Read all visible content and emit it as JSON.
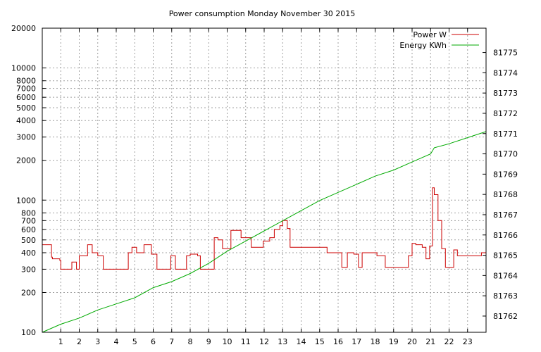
{
  "chart_data": {
    "type": "line",
    "title": "Power consumption Monday November 30 2015",
    "xlabel": "",
    "ylabel": "",
    "y2label": "",
    "xlim": [
      0,
      24
    ],
    "ylim": [
      100,
      20000
    ],
    "y_scale": "log",
    "y2lim": [
      81761.2,
      81776.2
    ],
    "x_ticks": [
      "1",
      "2",
      "3",
      "4",
      "5",
      "6",
      "7",
      "8",
      "9",
      "10",
      "11",
      "12",
      "13",
      "14",
      "15",
      "16",
      "17",
      "18",
      "19",
      "20",
      "21",
      "22",
      "23"
    ],
    "y_ticks_left": [
      {
        "value": 100,
        "label": "100"
      },
      {
        "value": 200,
        "label": "200"
      },
      {
        "value": 300,
        "label": "300"
      },
      {
        "value": 400,
        "label": "400"
      },
      {
        "value": 500,
        "label": "500"
      },
      {
        "value": 600,
        "label": "600"
      },
      {
        "value": 700,
        "label": "700"
      },
      {
        "value": 800,
        "label": "800"
      },
      {
        "value": 1000,
        "label": "1000"
      },
      {
        "value": 2000,
        "label": "2000"
      },
      {
        "value": 3000,
        "label": "3000"
      },
      {
        "value": 4000,
        "label": "4000"
      },
      {
        "value": 5000,
        "label": "5000"
      },
      {
        "value": 6000,
        "label": "6000"
      },
      {
        "value": 7000,
        "label": "7000"
      },
      {
        "value": 8000,
        "label": "8000"
      },
      {
        "value": 10000,
        "label": "10000"
      },
      {
        "value": 20000,
        "label": "20000"
      }
    ],
    "y_ticks_right": [
      "81762",
      "81763",
      "81764",
      "81765",
      "81766",
      "81767",
      "81768",
      "81769",
      "81770",
      "81771",
      "81772",
      "81773",
      "81774",
      "81775"
    ],
    "grid": true,
    "legend_position": "top-right",
    "series": [
      {
        "name": "Power W",
        "axis": "left",
        "color": "#cc0000",
        "x": [
          0,
          0.5,
          0.55,
          0.95,
          1.0,
          1.4,
          1.6,
          1.85,
          2.0,
          2.45,
          2.7,
          3.0,
          3.3,
          3.6,
          4.0,
          4.4,
          4.65,
          4.85,
          5.1,
          5.5,
          5.9,
          6.2,
          6.55,
          6.95,
          7.2,
          7.5,
          7.8,
          8.0,
          8.4,
          8.55,
          8.9,
          9.3,
          9.5,
          9.75,
          10.2,
          10.75,
          11.3,
          11.6,
          11.95,
          12.3,
          12.55,
          12.85,
          13.0,
          13.25,
          13.4,
          13.7,
          14.1,
          14.6,
          14.95,
          15.4,
          15.8,
          16.05,
          16.2,
          16.5,
          16.85,
          17.1,
          17.3,
          17.6,
          18.1,
          18.55,
          18.9,
          19.5,
          19.8,
          20.0,
          20.2,
          20.55,
          20.75,
          20.95,
          21.1,
          21.2,
          21.4,
          21.6,
          21.8,
          22.0,
          22.25,
          22.45,
          22.8,
          23.2,
          23.55,
          23.75,
          24.0
        ],
        "y": [
          460,
          370,
          360,
          350,
          300,
          300,
          340,
          300,
          380,
          460,
          400,
          380,
          300,
          300,
          300,
          300,
          400,
          440,
          400,
          460,
          390,
          300,
          300,
          380,
          300,
          300,
          380,
          390,
          380,
          300,
          300,
          520,
          500,
          430,
          590,
          520,
          440,
          440,
          490,
          520,
          600,
          640,
          700,
          610,
          440,
          440,
          440,
          440,
          440,
          400,
          400,
          400,
          310,
          400,
          390,
          310,
          400,
          400,
          380,
          310,
          310,
          310,
          380,
          470,
          460,
          440,
          360,
          450,
          1240,
          1100,
          700,
          430,
          310,
          310,
          420,
          380,
          380,
          380,
          380,
          400,
          400
        ]
      },
      {
        "name": "Energy KWh",
        "axis": "right",
        "color": "#00aa00",
        "x": [
          0,
          1,
          2,
          3,
          4,
          5,
          6,
          7,
          8,
          9,
          10,
          11,
          12,
          13,
          14,
          15,
          16,
          17,
          18,
          19,
          20,
          21,
          21.2,
          22,
          23,
          24
        ],
        "y": [
          81761.2,
          81761.6,
          81761.9,
          81762.3,
          81762.6,
          81762.9,
          81763.4,
          81763.7,
          81764.1,
          81764.6,
          81765.2,
          81765.7,
          81766.2,
          81766.7,
          81767.2,
          81767.7,
          81768.1,
          81768.5,
          81768.9,
          81769.2,
          81769.6,
          81770.0,
          81770.3,
          81770.5,
          81770.8,
          81771.1
        ]
      }
    ]
  }
}
